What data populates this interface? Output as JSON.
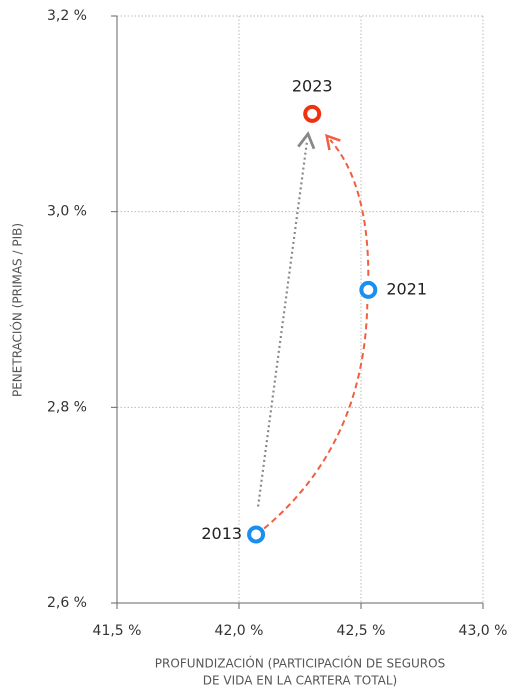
{
  "chart_data": {
    "type": "scatter",
    "xlabel": [
      "PROFUNDIZACIÓN (PARTICIPACIÓN DE SEGUROS",
      "DE VIDA EN LA CARTERA TOTAL)"
    ],
    "ylabel": "PENETRACIÓN (PRIMAS / PIB)",
    "series": [
      {
        "labels": [
          "2013",
          "2021",
          "2023"
        ],
        "colors": [
          "#1a8ff0",
          "#1a8ff0",
          "#f0320f"
        ],
        "x": [
          42.07,
          42.53,
          42.3
        ],
        "values": [
          2.67,
          2.92,
          3.1
        ]
      }
    ],
    "xlim": [
      41.5,
      43.0
    ],
    "xticks": [
      {
        "value": 41.5,
        "label": "41,5 %"
      },
      {
        "value": 42.0,
        "label": "42,0 %"
      },
      {
        "value": 42.5,
        "label": "42,5 %"
      },
      {
        "value": 43.0,
        "label": "43,0 %"
      }
    ],
    "ylim": [
      2.6,
      3.2
    ],
    "yticks": [
      {
        "value": 2.6,
        "label": "2,6 %"
      },
      {
        "value": 2.8,
        "label": "2,8 %"
      },
      {
        "value": 3.0,
        "label": "3,0 %"
      },
      {
        "value": 3.2,
        "label": "3,2 %"
      }
    ],
    "grid": true
  }
}
